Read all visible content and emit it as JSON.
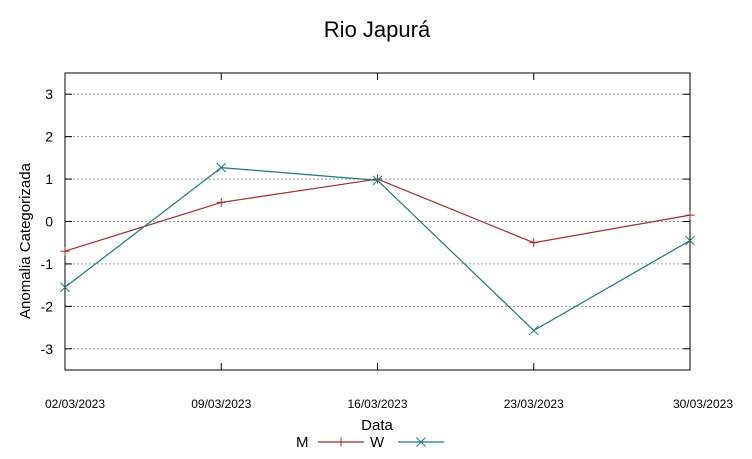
{
  "chart_data": {
    "type": "line",
    "title": "Rio Japurá",
    "xlabel": "Data",
    "ylabel": "Anomalia Categorizada",
    "categories": [
      "02/03/2023",
      "09/03/2023",
      "16/03/2023",
      "23/03/2023",
      "30/03/2023"
    ],
    "yticks": [
      -3,
      -2,
      -1,
      0,
      1,
      2,
      3
    ],
    "ylim": [
      -3.5,
      3.5
    ],
    "grid": "horizontal-dashed",
    "legend_position": "bottom-center",
    "series": [
      {
        "name": "M",
        "color": "#a52a2a",
        "marker": "plus",
        "values": [
          -0.7,
          0.45,
          1.0,
          -0.5,
          0.15
        ]
      },
      {
        "name": "W",
        "color": "#1a7a7a",
        "marker": "cross",
        "values": [
          -1.55,
          1.27,
          0.97,
          -2.57,
          -0.45
        ]
      }
    ]
  }
}
